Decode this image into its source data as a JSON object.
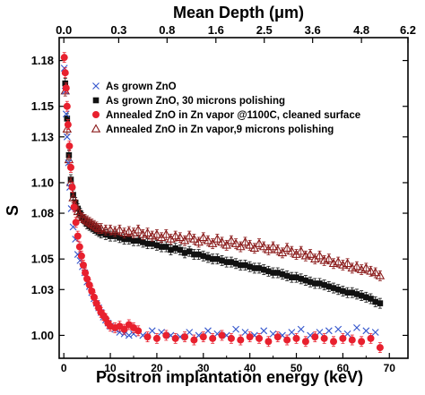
{
  "chart_data": {
    "type": "scatter",
    "title": "",
    "xlabel": "Positron implantation energy (keV)",
    "x2label": "Mean Depth (μm)",
    "ylabel": "S",
    "xlim": [
      -1,
      74
    ],
    "ylim": [
      0.985,
      1.195
    ],
    "x_ticks": [
      0,
      10,
      20,
      30,
      40,
      50,
      60,
      70
    ],
    "y_ticks": [
      1.0,
      1.03,
      1.05,
      1.08,
      1.1,
      1.13,
      1.15,
      1.18
    ],
    "y_tick_labels": [
      "1.00",
      "1.03",
      "1.05",
      "1.08",
      "1.10",
      "1.13",
      "1.15",
      "1.18"
    ],
    "top_ticks": [
      {
        "label": "0.0",
        "energy": 0
      },
      {
        "label": "0.3",
        "energy": 11.8
      },
      {
        "label": "0.8",
        "energy": 22.2
      },
      {
        "label": "1.6",
        "energy": 32.7
      },
      {
        "label": "2.5",
        "energy": 43.1
      },
      {
        "label": "3.6",
        "energy": 53.5
      },
      {
        "label": "4.8",
        "energy": 64.0
      },
      {
        "label": "6.2",
        "energy": 74.0
      }
    ],
    "grid": false,
    "legend_position": "top-right",
    "series": [
      {
        "name": "As grown ZnO",
        "marker": "x",
        "color": "#3355cc",
        "x": [
          0.1,
          0.3,
          0.5,
          0.7,
          1.0,
          1.3,
          1.6,
          2.0,
          2.5,
          3.0,
          3.5,
          4.0,
          4.5,
          5.0,
          5.5,
          6.0,
          6.5,
          7.0,
          7.5,
          8.0,
          8.5,
          9.0,
          9.5,
          10,
          11,
          12,
          13,
          14,
          15,
          17,
          19,
          21,
          23,
          25,
          27,
          29,
          31,
          33,
          35,
          37,
          39,
          41,
          43,
          45,
          47,
          49,
          51,
          53,
          55,
          57,
          59,
          61,
          63,
          65,
          67
        ],
        "y": [
          1.175,
          1.16,
          1.145,
          1.13,
          1.113,
          1.097,
          1.083,
          1.071,
          1.063,
          1.053,
          1.049,
          1.045,
          1.041,
          1.035,
          1.032,
          1.028,
          1.024,
          1.021,
          1.018,
          1.015,
          1.012,
          1.01,
          1.008,
          1.006,
          1.004,
          1.002,
          1.001,
          1.0,
          1.001,
          1.0,
          1.003,
          1.002,
          1.0,
          0.999,
          1.002,
          1.0,
          1.003,
          1.001,
          1.0,
          1.004,
          1.002,
          1.0,
          1.003,
          1.001,
          1.0,
          1.002,
          1.004,
          1.0,
          1.002,
          1.003,
          1.004,
          1.001,
          1.005,
          1.003,
          1.002
        ]
      },
      {
        "name": "As grown  ZnO, 30 microns polishing",
        "marker": "square",
        "color": "#111111",
        "x": [
          0.3,
          0.7,
          1.1,
          1.5,
          2.0,
          2.5,
          3.0,
          3.5,
          4.0,
          4.5,
          5.0,
          5.5,
          6.0,
          6.5,
          7.0,
          7.5,
          8.0,
          9.0,
          10,
          11,
          12,
          13,
          14,
          15,
          16,
          17,
          18,
          19,
          20,
          21,
          22,
          23,
          24,
          25,
          26,
          27,
          28,
          29,
          30,
          31,
          32,
          33,
          34,
          35,
          36,
          37,
          38,
          39,
          40,
          41,
          42,
          43,
          44,
          45,
          46,
          47,
          48,
          49,
          50,
          51,
          52,
          53,
          54,
          55,
          56,
          57,
          58,
          59,
          60,
          61,
          62,
          63,
          64,
          65,
          66,
          67,
          68
        ],
        "y": [
          1.165,
          1.142,
          1.118,
          1.102,
          1.092,
          1.087,
          1.083,
          1.08,
          1.077,
          1.075,
          1.073,
          1.072,
          1.071,
          1.07,
          1.069,
          1.068,
          1.067,
          1.066,
          1.065,
          1.065,
          1.064,
          1.063,
          1.063,
          1.062,
          1.062,
          1.061,
          1.06,
          1.06,
          1.059,
          1.058,
          1.058,
          1.056,
          1.057,
          1.056,
          1.054,
          1.055,
          1.053,
          1.053,
          1.052,
          1.051,
          1.05,
          1.05,
          1.049,
          1.048,
          1.048,
          1.047,
          1.046,
          1.046,
          1.045,
          1.044,
          1.044,
          1.043,
          1.042,
          1.041,
          1.041,
          1.04,
          1.039,
          1.038,
          1.038,
          1.037,
          1.036,
          1.035,
          1.034,
          1.034,
          1.033,
          1.032,
          1.031,
          1.03,
          1.029,
          1.028,
          1.028,
          1.027,
          1.026,
          1.025,
          1.024,
          1.022,
          1.021
        ]
      },
      {
        "name": "Annealed ZnO in Zn vapor @1100C, cleaned surface",
        "marker": "circle",
        "color": "#e8202e",
        "x": [
          0.1,
          0.3,
          0.5,
          0.7,
          0.9,
          1.2,
          1.5,
          1.8,
          2.2,
          2.6,
          3.0,
          3.4,
          3.8,
          4.2,
          4.6,
          5.0,
          5.5,
          6.0,
          6.5,
          7.0,
          7.5,
          8.0,
          8.5,
          9.0,
          9.5,
          10,
          11,
          12,
          13,
          14,
          15,
          16,
          18,
          20,
          22,
          24,
          26,
          28,
          30,
          32,
          34,
          36,
          38,
          40,
          42,
          44,
          46,
          48,
          50,
          52,
          54,
          56,
          58,
          60,
          62,
          64,
          66,
          68
        ],
        "y": [
          1.182,
          1.172,
          1.162,
          1.15,
          1.138,
          1.124,
          1.11,
          1.097,
          1.084,
          1.074,
          1.065,
          1.058,
          1.052,
          1.046,
          1.041,
          1.037,
          1.033,
          1.029,
          1.025,
          1.021,
          1.018,
          1.015,
          1.013,
          1.011,
          1.008,
          1.006,
          1.005,
          1.006,
          1.004,
          1.007,
          1.005,
          1.003,
          0.999,
          0.998,
          1.0,
          0.998,
          0.999,
          0.997,
          0.999,
          0.998,
          1.0,
          0.998,
          0.997,
          0.999,
          0.998,
          0.996,
          0.999,
          0.997,
          0.998,
          0.996,
          0.999,
          0.998,
          0.996,
          0.998,
          0.997,
          0.996,
          0.998,
          0.992
        ]
      },
      {
        "name": "Annealed ZnO in Zn vapor,9 microns polishing",
        "marker": "triangle",
        "color": "#8a1a1a",
        "x": [
          0.3,
          0.7,
          1.1,
          1.5,
          2.0,
          2.5,
          3.0,
          3.5,
          4.0,
          4.5,
          5.0,
          5.5,
          6.0,
          6.5,
          7.0,
          7.5,
          8.0,
          9.0,
          10,
          11,
          12,
          13,
          14,
          15,
          16,
          17,
          18,
          19,
          20,
          21,
          22,
          23,
          24,
          25,
          26,
          27,
          28,
          29,
          30,
          31,
          32,
          33,
          34,
          35,
          36,
          37,
          38,
          39,
          40,
          41,
          42,
          43,
          44,
          45,
          46,
          47,
          48,
          49,
          50,
          51,
          52,
          53,
          54,
          55,
          56,
          57,
          58,
          59,
          60,
          61,
          62,
          63,
          64,
          65,
          66,
          67,
          68
        ],
        "y": [
          1.16,
          1.135,
          1.115,
          1.1,
          1.09,
          1.085,
          1.081,
          1.079,
          1.077,
          1.076,
          1.075,
          1.074,
          1.073,
          1.072,
          1.071,
          1.07,
          1.07,
          1.069,
          1.069,
          1.068,
          1.069,
          1.067,
          1.068,
          1.067,
          1.069,
          1.066,
          1.067,
          1.065,
          1.066,
          1.064,
          1.066,
          1.063,
          1.065,
          1.064,
          1.062,
          1.065,
          1.063,
          1.061,
          1.064,
          1.062,
          1.06,
          1.063,
          1.061,
          1.059,
          1.062,
          1.06,
          1.058,
          1.061,
          1.059,
          1.057,
          1.06,
          1.058,
          1.056,
          1.058,
          1.056,
          1.054,
          1.057,
          1.055,
          1.053,
          1.055,
          1.052,
          1.053,
          1.05,
          1.052,
          1.049,
          1.05,
          1.047,
          1.048,
          1.046,
          1.047,
          1.044,
          1.045,
          1.043,
          1.044,
          1.042,
          1.041,
          1.039
        ]
      }
    ]
  }
}
